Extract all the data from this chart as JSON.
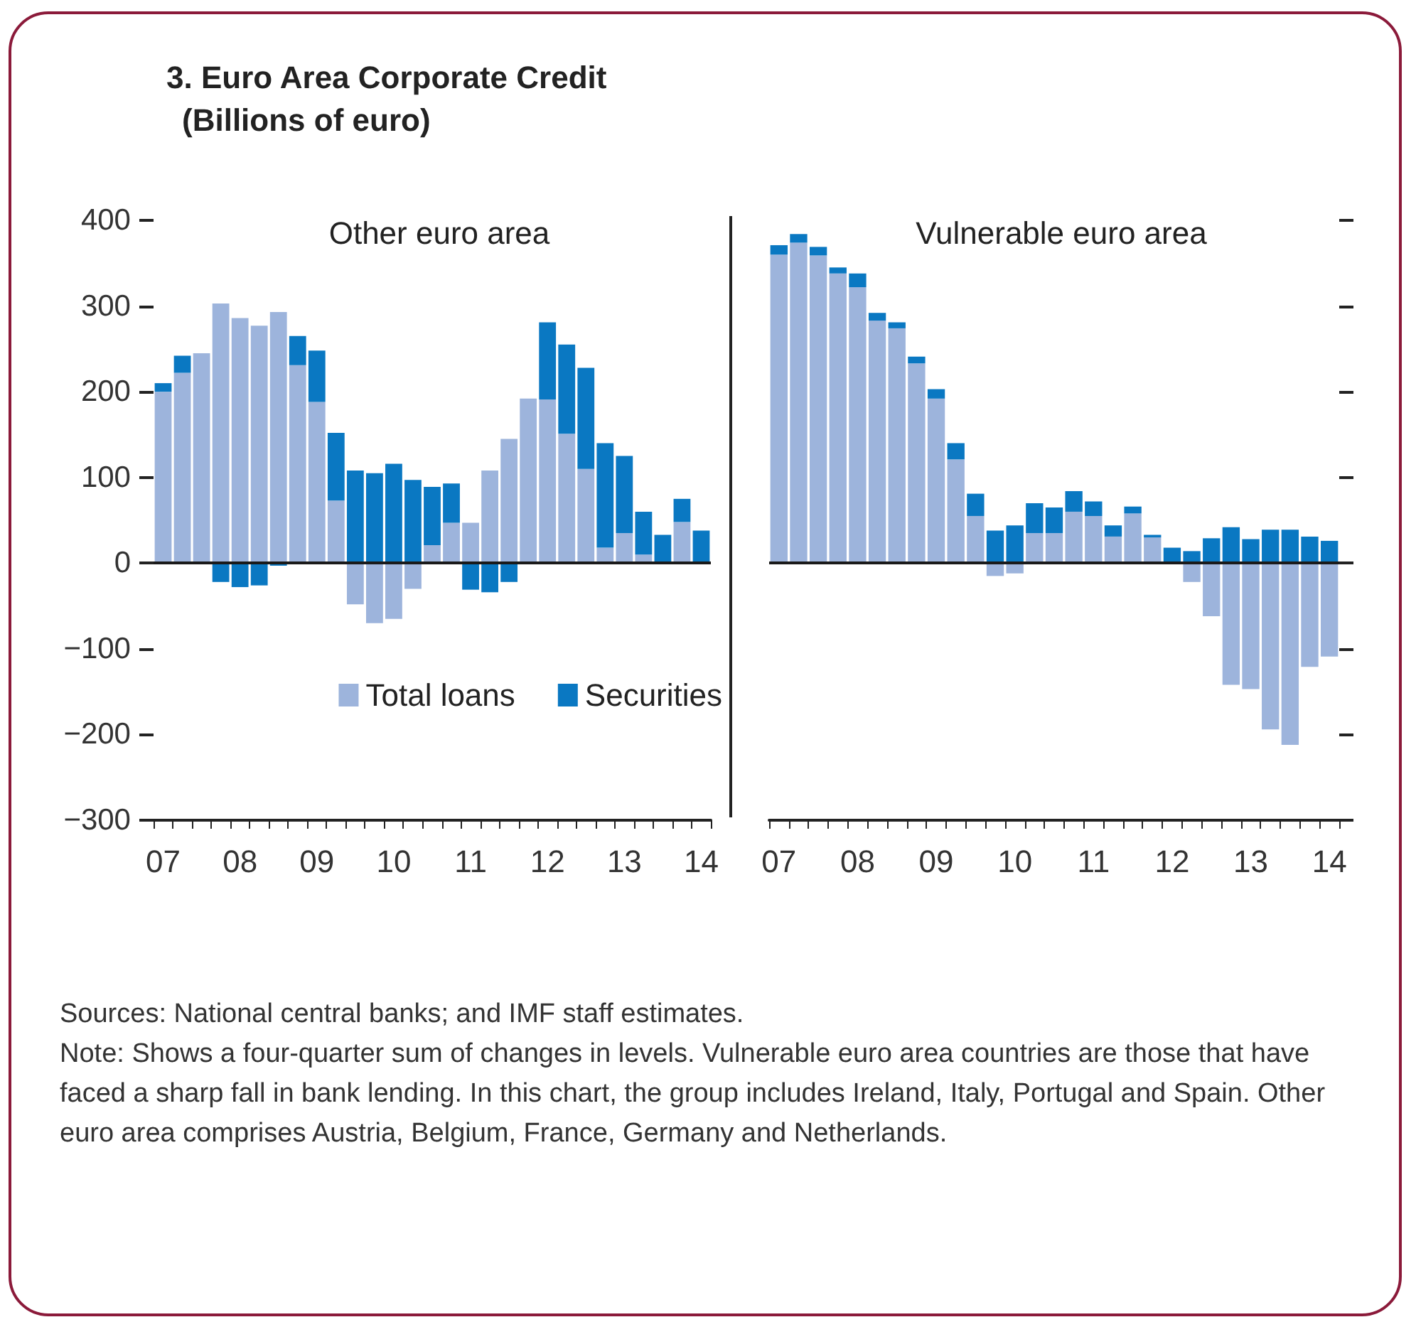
{
  "chart_data": [
    {
      "type": "bar",
      "stacked": true,
      "title": "3. Euro Area Corporate Credit",
      "subtitle": "(Billions of euro)",
      "annotations": [
        "Other euro area",
        "Sources: National central banks; and IMF staff estimates.",
        "Note: Shows a four-quarter sum of changes in levels. Vulnerable euro area countries are those that have faced a sharp fall in bank lending. In this chart, the group includes Ireland, Italy, Portugal and Spain. Other euro area comprises Austria, Belgium, France, Germany and Netherlands."
      ],
      "categories": [
        "07",
        null,
        null,
        null,
        "08",
        null,
        null,
        null,
        "09",
        null,
        null,
        null,
        "10",
        null,
        null,
        null,
        "11",
        null,
        null,
        null,
        "12",
        null,
        null,
        null,
        "13",
        null,
        null,
        null,
        "14"
      ],
      "series": [
        {
          "name": "Total loans",
          "color": "#9db4dc",
          "values": [
            200,
            222,
            245,
            303,
            286,
            277,
            293,
            231,
            188,
            73,
            -48,
            -70,
            -65,
            -30,
            21,
            47,
            47,
            108,
            145,
            192,
            191,
            151,
            110,
            18,
            35,
            10,
            0,
            48,
            0
          ]
        },
        {
          "name": "Securities",
          "color": "#0a78c2",
          "values": [
            10,
            20,
            0,
            -22,
            -28,
            -26,
            -3,
            34,
            60,
            79,
            108,
            105,
            116,
            97,
            68,
            46,
            -31,
            -34,
            -22,
            0,
            90,
            104,
            118,
            122,
            90,
            50,
            33,
            27,
            38
          ]
        }
      ],
      "ylim": [
        -300,
        400
      ],
      "yticks": [
        -300,
        -200,
        -100,
        0,
        100,
        200,
        300,
        400
      ],
      "ref_lines": [
        {
          "axis": "y",
          "value": 0,
          "color": "#1a1a1a"
        }
      ],
      "legend": "bottom right",
      "grid": false
    },
    {
      "type": "bar",
      "stacked": true,
      "annotations": [
        "Vulnerable euro area"
      ],
      "categories": [
        "07",
        null,
        null,
        null,
        "08",
        null,
        null,
        null,
        "09",
        null,
        null,
        null,
        "10",
        null,
        null,
        null,
        "11",
        null,
        null,
        null,
        "12",
        null,
        null,
        null,
        "13",
        null,
        null,
        null,
        "14"
      ],
      "series": [
        {
          "color": "#9db4dc",
          "values": [
            360,
            374,
            359,
            338,
            322,
            283,
            274,
            233,
            192,
            121,
            55,
            -15,
            -12,
            35,
            35,
            60,
            55,
            31,
            58,
            30,
            0,
            -22,
            -62,
            -142,
            -147,
            -194,
            -212,
            -121,
            -109
          ]
        },
        {
          "color": "#0a78c2",
          "values": [
            11,
            10,
            10,
            7,
            16,
            9,
            7,
            8,
            11,
            19,
            26,
            38,
            44,
            35,
            30,
            24,
            17,
            13,
            8,
            3,
            18,
            14,
            29,
            42,
            28,
            39,
            39,
            31,
            26
          ]
        }
      ],
      "ylim": [
        -300,
        400
      ],
      "yticks": [
        -300,
        -200,
        -100,
        0,
        100,
        200,
        300,
        400
      ],
      "ref_lines": [
        {
          "axis": "y",
          "value": 0,
          "color": "#1a1a1a"
        }
      ],
      "tick_labels": "x",
      "grid": false
    }
  ]
}
